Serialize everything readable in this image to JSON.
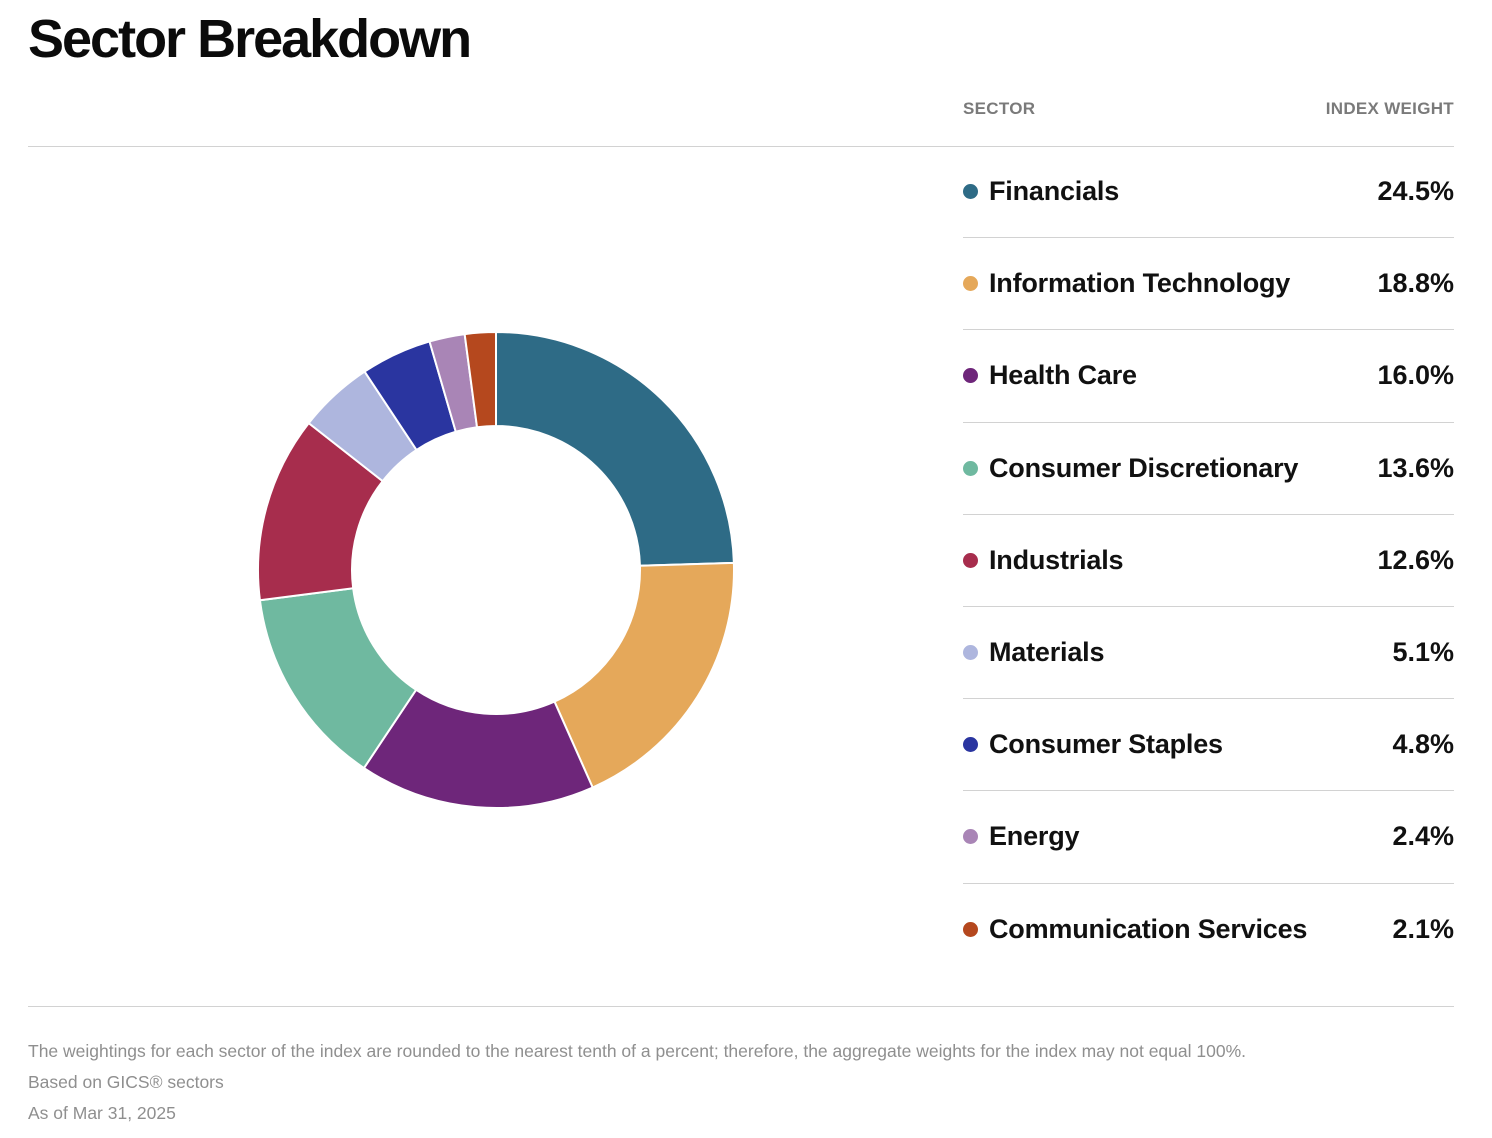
{
  "title": "Sector Breakdown",
  "table": {
    "col_sector": "SECTOR",
    "col_weight": "INDEX WEIGHT"
  },
  "sectors": [
    {
      "name": "Financials",
      "weight": "24.5%",
      "color": "#2e6b86"
    },
    {
      "name": "Information Technology",
      "weight": "18.8%",
      "color": "#e5a85a"
    },
    {
      "name": "Health Care",
      "weight": "16.0%",
      "color": "#6e267a"
    },
    {
      "name": "Consumer Discretionary",
      "weight": "13.6%",
      "color": "#6fb9a0"
    },
    {
      "name": "Industrials",
      "weight": "12.6%",
      "color": "#a72d4d"
    },
    {
      "name": "Materials",
      "weight": "5.1%",
      "color": "#aeb6de"
    },
    {
      "name": "Consumer Staples",
      "weight": "4.8%",
      "color": "#2a35a0"
    },
    {
      "name": "Energy",
      "weight": "2.4%",
      "color": "#a985b6"
    },
    {
      "name": "Communication Services",
      "weight": "2.1%",
      "color": "#b5481e"
    }
  ],
  "chart_data": {
    "type": "pie",
    "style": "donut",
    "categories": [
      "Financials",
      "Information Technology",
      "Health Care",
      "Consumer Discretionary",
      "Industrials",
      "Materials",
      "Consumer Staples",
      "Energy",
      "Communication Services"
    ],
    "values": [
      24.5,
      18.8,
      16.0,
      13.6,
      12.6,
      5.1,
      4.8,
      2.4,
      2.1
    ],
    "unit": "%",
    "colors": [
      "#2e6b86",
      "#e5a85a",
      "#6e267a",
      "#6fb9a0",
      "#a72d4d",
      "#aeb6de",
      "#2a35a0",
      "#a985b6",
      "#b5481e"
    ],
    "start_angle": "top",
    "direction": "clockwise",
    "legend": "right"
  },
  "footnotes": [
    "The weightings for each sector of the index are rounded to the nearest tenth of a percent; therefore, the aggregate weights for the index may not equal 100%.",
    "Based on GICS® sectors",
    "As of Mar 31, 2025"
  ]
}
